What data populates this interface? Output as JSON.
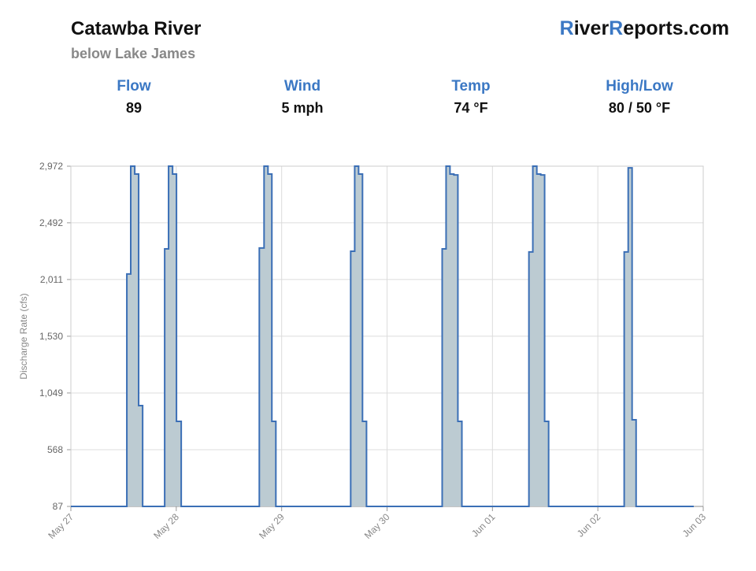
{
  "header": {
    "title": "Catawba River",
    "subtitle": "below Lake James",
    "logo": [
      "R",
      "iver",
      "R",
      "eports.com"
    ],
    "stats": [
      {
        "label": "Flow",
        "value": "89"
      },
      {
        "label": "Wind",
        "value": "5 mph"
      },
      {
        "label": "Temp",
        "value": "74 °F"
      },
      {
        "label": "High/Low",
        "value": "80 / 50 °F"
      }
    ]
  },
  "chart_data": {
    "type": "step-area",
    "y_label": "Discharge Rate (cfs)",
    "xlim": [
      0,
      6
    ],
    "ylim": [
      87,
      2972
    ],
    "xticks": [
      {
        "value": 0,
        "label": "May 27"
      },
      {
        "value": 1,
        "label": "May 28"
      },
      {
        "value": 2,
        "label": "May 29"
      },
      {
        "value": 3,
        "label": "May 30"
      },
      {
        "value": 4,
        "label": "Jun 01"
      },
      {
        "value": 5,
        "label": "Jun 02"
      },
      {
        "value": 6,
        "label": "Jun 03"
      }
    ],
    "yticks": [
      87,
      {
        "value": 568,
        "label": "568"
      },
      {
        "value": 1049,
        "label": "1,049"
      },
      {
        "value": 1530,
        "label": "1,530"
      },
      {
        "value": 2011,
        "label": "2,011"
      },
      {
        "value": 2492,
        "label": "2,492"
      },
      {
        "value": 2972,
        "label": "2,972"
      }
    ],
    "grid": true,
    "series": [
      {
        "color": "#3b6fb6",
        "fill": "#bccbd2",
        "x": [
          0,
          0.531,
          0.568,
          0.606,
          0.643,
          0.681,
          0.89,
          0.927,
          0.965,
          1.002,
          1.047,
          1.788,
          1.833,
          1.87,
          1.907,
          1.945,
          2.655,
          2.693,
          2.73,
          2.767,
          2.805,
          3.523,
          3.56,
          3.597,
          3.634,
          3.672,
          3.71,
          4.346,
          4.383,
          4.421,
          4.458,
          4.495,
          4.533,
          5.25,
          5.288,
          5.325,
          5.363,
          5.91
        ],
        "values": [
          87,
          2058,
          2972,
          2905,
          942,
          87,
          2271,
          2972,
          2905,
          808,
          87,
          2278,
          2972,
          2905,
          808,
          87,
          2251,
          2972,
          2905,
          808,
          87,
          2271,
          2972,
          2905,
          2898,
          808,
          87,
          2245,
          2972,
          2905,
          2898,
          808,
          87,
          2245,
          2958,
          822,
          87,
          87
        ]
      }
    ]
  }
}
